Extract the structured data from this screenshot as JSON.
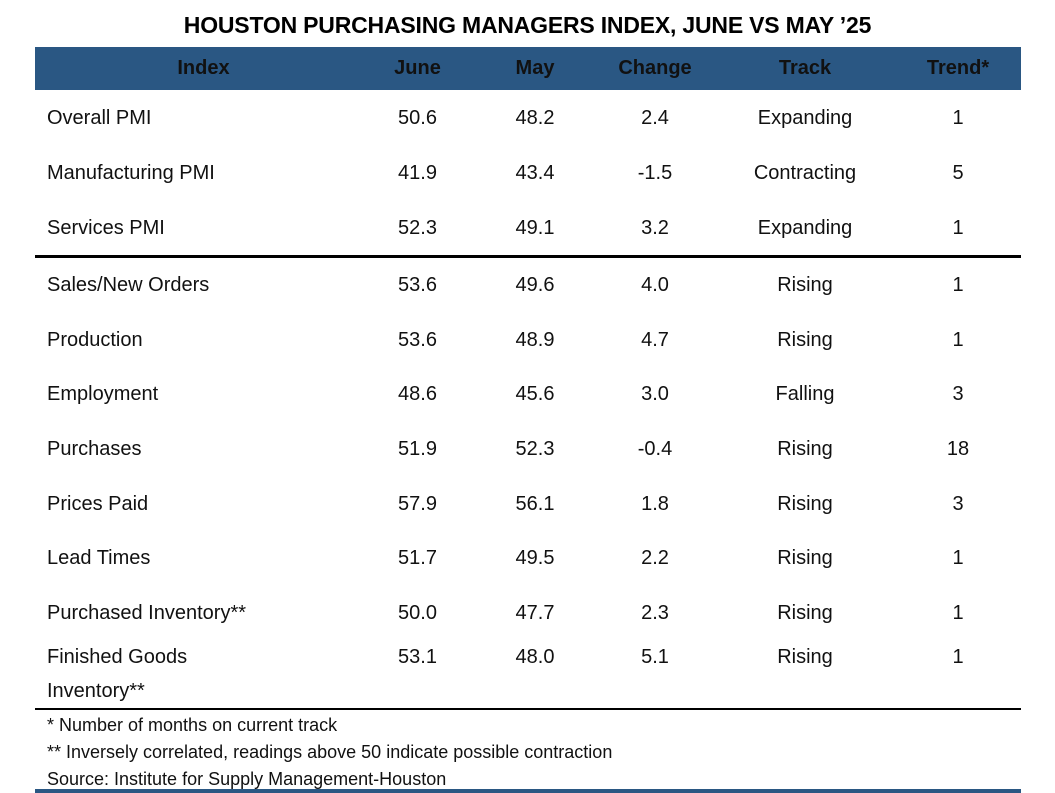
{
  "title": "HOUSTON PURCHASING MANAGERS INDEX, JUNE VS MAY ’25",
  "colors": {
    "header_bg": "#2a5783",
    "header_text": "#ffffff",
    "divider": "#000000"
  },
  "table": {
    "columns": [
      "Index",
      "June",
      "May",
      "Change",
      "Track",
      "Trend*"
    ],
    "column_keys": [
      "index",
      "june",
      "may",
      "change",
      "track",
      "trend"
    ],
    "sections": [
      {
        "rows": [
          {
            "index": "Overall PMI",
            "june": "50.6",
            "may": "48.2",
            "change": "2.4",
            "track": "Expanding",
            "trend": "1"
          },
          {
            "index": "Manufacturing PMI",
            "june": "41.9",
            "may": "43.4",
            "change": "-1.5",
            "track": "Contracting",
            "trend": "5"
          },
          {
            "index": "Services PMI",
            "june": "52.3",
            "may": "49.1",
            "change": "3.2",
            "track": "Expanding",
            "trend": "1"
          }
        ]
      },
      {
        "rows": [
          {
            "index": "Sales/New Orders",
            "june": "53.6",
            "may": "49.6",
            "change": "4.0",
            "track": "Rising",
            "trend": "1"
          },
          {
            "index": "Production",
            "june": "53.6",
            "may": "48.9",
            "change": "4.7",
            "track": "Rising",
            "trend": "1"
          },
          {
            "index": "Employment",
            "june": "48.6",
            "may": "45.6",
            "change": "3.0",
            "track": "Falling",
            "trend": "3"
          },
          {
            "index": "Purchases",
            "june": "51.9",
            "may": "52.3",
            "change": "-0.4",
            "track": "Rising",
            "trend": "18"
          },
          {
            "index": "Prices Paid",
            "june": "57.9",
            "may": "56.1",
            "change": "1.8",
            "track": "Rising",
            "trend": "3"
          },
          {
            "index": "Lead Times",
            "june": "51.7",
            "may": "49.5",
            "change": "2.2",
            "track": "Rising",
            "trend": "1"
          },
          {
            "index": "Purchased Inventory**",
            "june": "50.0",
            "may": "47.7",
            "change": "2.3",
            "track": "Rising",
            "trend": "1"
          },
          {
            "index": "Finished Goods\nInventory**",
            "june": "53.1",
            "may": "48.0",
            "change": "5.1",
            "track": "Rising",
            "trend": "1"
          }
        ]
      }
    ]
  },
  "footnotes": [
    "* Number of months on current track",
    "** Inversely correlated, readings above 50 indicate possible contraction"
  ],
  "source": "Source: Institute for Supply Management-Houston"
}
